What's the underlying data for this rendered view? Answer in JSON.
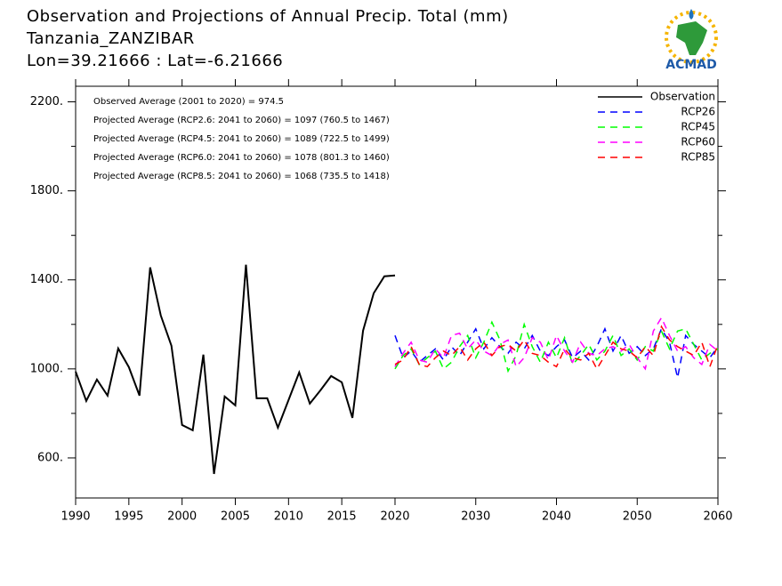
{
  "chart_data": {
    "type": "line",
    "title": "Observation and Projections of Annual Precip. Total (mm)",
    "subtitle": "Tanzania_ZANZIBAR",
    "location": "Lon=39.21666 : Lat=-6.21666",
    "logo": "ACMAD",
    "annotations": [
      "Observed Average (2001 to 2020) = 974.5",
      "Projected Average (RCP2.6: 2041 to 2060) = 1097 (760.5 to 1467)",
      "Projected Average (RCP4.5: 2041 to 2060) = 1089 (722.5 to 1499)",
      "Projected Average (RCP6.0: 2041 to 2060) = 1078 (801.3 to 1460)",
      "Projected Average (RCP8.5: 2041 to 2060) = 1068 (735.5 to 1418)"
    ],
    "xlim": [
      1990,
      2060
    ],
    "xticks": [
      1990,
      1995,
      2000,
      2005,
      2010,
      2015,
      2020,
      2030,
      2040,
      2050,
      2060
    ],
    "ylim": [
      420,
      2270
    ],
    "yticks": [
      {
        "value": 600,
        "label": "600."
      },
      {
        "value": 1000,
        "label": "1000."
      },
      {
        "value": 1400,
        "label": "1400."
      },
      {
        "value": 1800,
        "label": "1800."
      },
      {
        "value": 2200,
        "label": "2200."
      }
    ],
    "yminorticks": [
      800,
      1200,
      1600,
      2000
    ],
    "legend": "top-right",
    "series": [
      {
        "name": "Observation",
        "color": "#000000",
        "dashed": false,
        "x": [
          1990,
          1991,
          1992,
          1993,
          1994,
          1995,
          1996,
          1997,
          1998,
          1999,
          2000,
          2001,
          2002,
          2003,
          2004,
          2005,
          2006,
          2007,
          2008,
          2009,
          2010,
          2011,
          2012,
          2013,
          2014,
          2015,
          2016,
          2017,
          2018,
          2019,
          2020
        ],
        "values": [
          988,
          856,
          952,
          880,
          1092,
          1008,
          880,
          1456,
          1240,
          1104,
          748,
          724,
          1064,
          528,
          876,
          836,
          1468,
          868,
          868,
          736,
          860,
          984,
          844,
          904,
          968,
          940,
          780,
          1172,
          1340,
          1416,
          1420
        ]
      },
      {
        "name": "RCP26",
        "color": "#0000ff",
        "dashed": true,
        "x": [
          2020,
          2021,
          2022,
          2023,
          2024,
          2025,
          2026,
          2027,
          2028,
          2029,
          2030,
          2031,
          2032,
          2033,
          2034,
          2035,
          2036,
          2037,
          2038,
          2039,
          2040,
          2041,
          2042,
          2043,
          2044,
          2045,
          2046,
          2047,
          2048,
          2049,
          2050,
          2051,
          2052,
          2053,
          2054,
          2055,
          2056,
          2057,
          2058,
          2059,
          2060
        ],
        "values": [
          1150,
          1050,
          1080,
          1030,
          1060,
          1090,
          1040,
          1100,
          1060,
          1120,
          1180,
          1090,
          1140,
          1100,
          1070,
          1120,
          1090,
          1150,
          1080,
          1060,
          1100,
          1130,
          1050,
          1080,
          1040,
          1100,
          1180,
          1080,
          1150,
          1070,
          1100,
          1060,
          1090,
          1180,
          1120,
          960,
          1150,
          1110,
          1080,
          1050,
          1100
        ]
      },
      {
        "name": "RCP45",
        "color": "#00ff00",
        "dashed": true,
        "x": [
          2020,
          2021,
          2022,
          2023,
          2024,
          2025,
          2026,
          2027,
          2028,
          2029,
          2030,
          2031,
          2032,
          2033,
          2034,
          2035,
          2036,
          2037,
          2038,
          2039,
          2040,
          2041,
          2042,
          2043,
          2044,
          2045,
          2046,
          2047,
          2048,
          2049,
          2050,
          2051,
          2052,
          2053,
          2054,
          2055,
          2056,
          2057,
          2058,
          2059,
          2060
        ],
        "values": [
          1000,
          1060,
          1090,
          1020,
          1050,
          1080,
          1000,
          1030,
          1100,
          1150,
          1050,
          1120,
          1210,
          1130,
          990,
          1060,
          1200,
          1100,
          1030,
          1120,
          1050,
          1140,
          1020,
          1060,
          1110,
          1040,
          1080,
          1150,
          1060,
          1090,
          1040,
          1100,
          1080,
          1170,
          1090,
          1170,
          1180,
          1110,
          1040,
          1070,
          1090
        ]
      },
      {
        "name": "RCP60",
        "color": "#ff00ff",
        "dashed": true,
        "x": [
          2020,
          2021,
          2022,
          2023,
          2024,
          2025,
          2026,
          2027,
          2028,
          2029,
          2030,
          2031,
          2032,
          2033,
          2034,
          2035,
          2036,
          2037,
          2038,
          2039,
          2040,
          2041,
          2042,
          2043,
          2044,
          2045,
          2046,
          2047,
          2048,
          2049,
          2050,
          2051,
          2052,
          2053,
          2054,
          2055,
          2056,
          2057,
          2058,
          2059,
          2060
        ],
        "values": [
          1010,
          1070,
          1120,
          1040,
          1030,
          1090,
          1050,
          1150,
          1160,
          1090,
          1130,
          1080,
          1060,
          1110,
          1130,
          1010,
          1050,
          1140,
          1120,
          1040,
          1150,
          1080,
          1030,
          1120,
          1070,
          1060,
          1090,
          1100,
          1080,
          1110,
          1050,
          1000,
          1170,
          1230,
          1150,
          1080,
          1100,
          1050,
          1020,
          1110,
          1080
        ]
      },
      {
        "name": "RCP85",
        "color": "#ff0000",
        "dashed": true,
        "x": [
          2020,
          2021,
          2022,
          2023,
          2024,
          2025,
          2026,
          2027,
          2028,
          2029,
          2030,
          2031,
          2032,
          2033,
          2034,
          2035,
          2036,
          2037,
          2038,
          2039,
          2040,
          2041,
          2042,
          2043,
          2044,
          2045,
          2046,
          2047,
          2048,
          2049,
          2050,
          2051,
          2052,
          2053,
          2054,
          2055,
          2056,
          2057,
          2058,
          2059,
          2060
        ],
        "values": [
          1020,
          1040,
          1100,
          1020,
          1010,
          1050,
          1080,
          1060,
          1100,
          1040,
          1090,
          1120,
          1060,
          1100,
          1110,
          1080,
          1130,
          1070,
          1060,
          1030,
          1010,
          1090,
          1050,
          1040,
          1070,
          1000,
          1060,
          1120,
          1090,
          1080,
          1050,
          1100,
          1060,
          1190,
          1130,
          1100,
          1080,
          1060,
          1120,
          1010,
          1110
        ]
      }
    ]
  }
}
